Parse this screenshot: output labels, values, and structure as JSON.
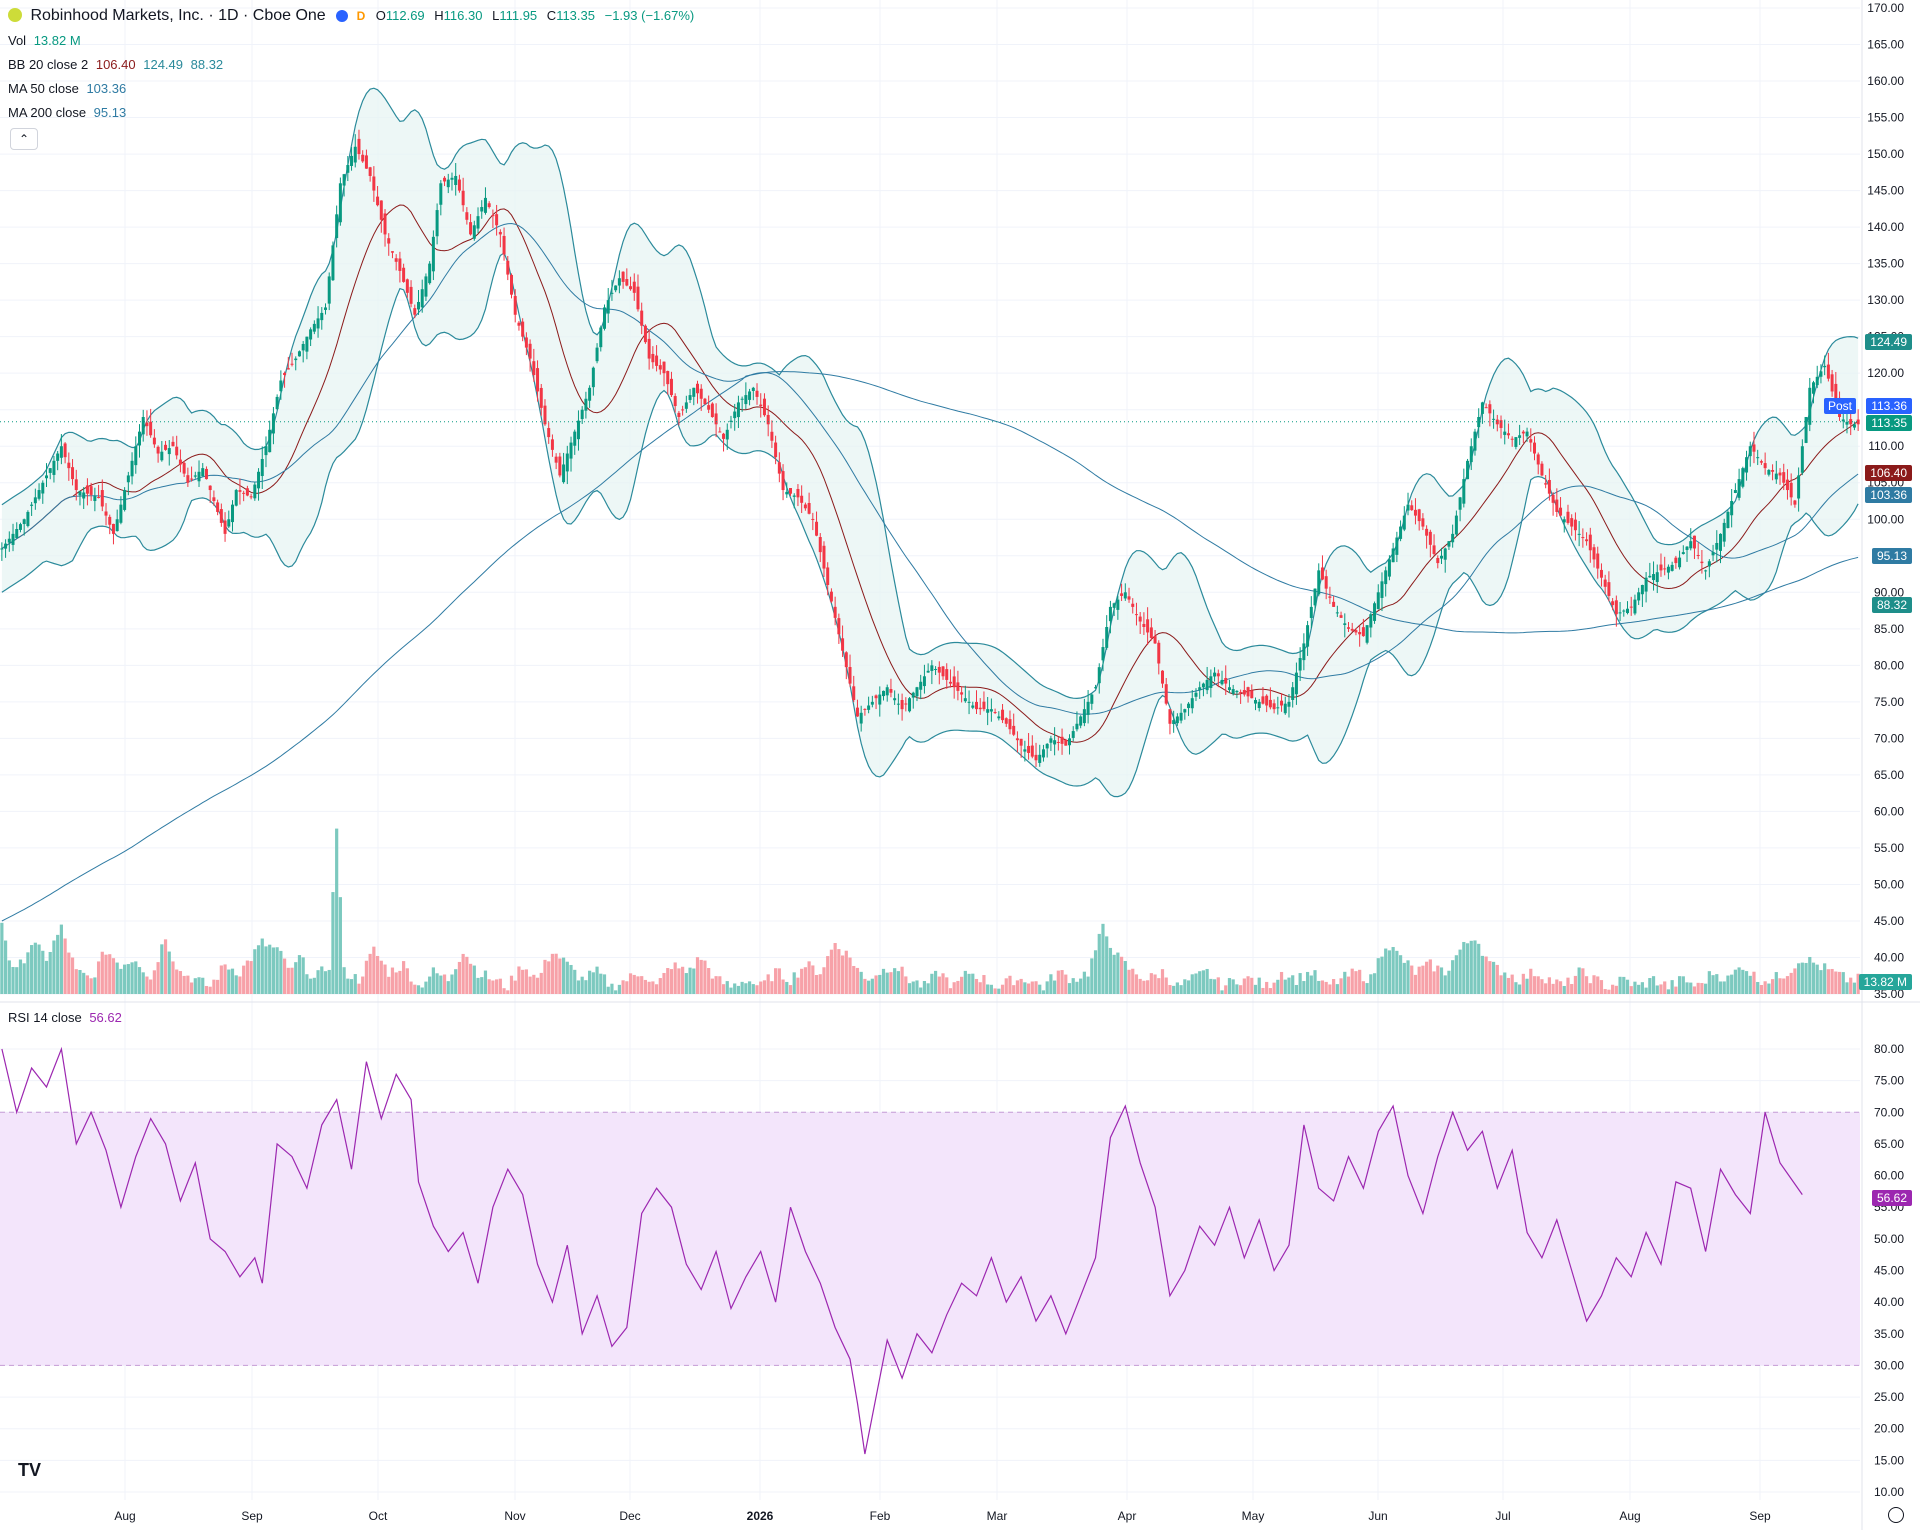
{
  "header": {
    "title": "Robinhood Markets, Inc. · 1D · Cboe One",
    "market_status_icons": [
      "moon-icon",
      "delayed-d-icon"
    ],
    "delayed_label": "D",
    "ohlc": {
      "o_label": "O",
      "o": "112.69",
      "h_label": "H",
      "h": "116.30",
      "l_label": "L",
      "l": "111.95",
      "c_label": "C",
      "c": "113.35",
      "change": "−1.93 (−1.67%)"
    }
  },
  "indicators": {
    "vol": {
      "label": "Vol",
      "value": "13.82 M"
    },
    "bb": {
      "label": "BB 20 close 2",
      "basis": "106.40",
      "upper": "124.49",
      "lower": "88.32"
    },
    "ma50": {
      "label": "MA 50 close",
      "value": "103.36"
    },
    "ma200": {
      "label": "MA 200 close",
      "value": "95.13"
    },
    "rsi": {
      "label": "RSI 14 close",
      "value": "56.62"
    }
  },
  "badges": {
    "post_label": "Post",
    "post_price": "113.36",
    "last_price": "113.35",
    "bb_upper": "124.49",
    "bb_basis": "106.40",
    "ma50": "103.36",
    "ma200": "95.13",
    "bb_lower": "88.32",
    "volume": "13.82 M",
    "rsi": "56.62"
  },
  "colors": {
    "up": "#089981",
    "down": "#f23645",
    "bb_line": "#2b8a9b",
    "bb_fill": "#e6f4f2",
    "bb_basis": "#8b1a1a",
    "ma50": "#2f7ba3",
    "ma200": "#2f7ba3",
    "rsi_line": "#9c27b0",
    "rsi_band": "#f3e5fb",
    "post": "#2962ff"
  },
  "collapse_icon": "chevron-up-icon",
  "logo_icon": "tradingview-logo-icon",
  "settings_icon": "gear-icon",
  "chart_data": {
    "type": "candlestick",
    "price_axis": {
      "ticks": [
        "170.00",
        "165.00",
        "160.00",
        "155.00",
        "150.00",
        "145.00",
        "140.00",
        "135.00",
        "130.00",
        "125.00",
        "120.00",
        "115.00",
        "110.00",
        "105.00",
        "100.00",
        "95.00",
        "90.00",
        "85.00",
        "80.00",
        "75.00",
        "70.00",
        "65.00",
        "60.00",
        "55.00",
        "50.00",
        "45.00",
        "40.00",
        "35.00"
      ],
      "range": [
        35,
        170
      ]
    },
    "rsi_axis": {
      "ticks": [
        "80.00",
        "75.00",
        "70.00",
        "65.00",
        "60.00",
        "55.00",
        "50.00",
        "45.00",
        "40.00",
        "35.00",
        "30.00",
        "25.00",
        "20.00",
        "15.00",
        "10.00"
      ],
      "range": [
        10,
        80
      ],
      "band": [
        30,
        70
      ]
    },
    "time_axis": [
      "Aug",
      "Sep",
      "Oct",
      "Nov",
      "Dec",
      "2026",
      "Feb",
      "Mar",
      "Apr",
      "May",
      "Jun",
      "Jul",
      "Aug",
      "Sep"
    ],
    "close_path": [
      [
        0,
        96
      ],
      [
        6,
        100
      ],
      [
        12,
        106
      ],
      [
        16,
        110
      ],
      [
        20,
        104
      ],
      [
        26,
        103
      ],
      [
        30,
        98
      ],
      [
        34,
        106
      ],
      [
        38,
        114
      ],
      [
        42,
        109
      ],
      [
        46,
        110
      ],
      [
        50,
        105
      ],
      [
        54,
        107
      ],
      [
        58,
        101
      ],
      [
        60,
        98
      ],
      [
        63,
        104
      ],
      [
        67,
        103
      ],
      [
        71,
        110
      ],
      [
        75,
        119
      ],
      [
        79,
        122
      ],
      [
        83,
        126
      ],
      [
        87,
        129
      ],
      [
        91,
        146
      ],
      [
        95,
        151
      ],
      [
        99,
        147
      ],
      [
        103,
        139
      ],
      [
        107,
        134
      ],
      [
        111,
        128
      ],
      [
        115,
        135
      ],
      [
        118,
        146
      ],
      [
        122,
        147
      ],
      [
        126,
        139
      ],
      [
        130,
        144
      ],
      [
        134,
        139
      ],
      [
        138,
        128
      ],
      [
        142,
        122
      ],
      [
        146,
        113
      ],
      [
        150,
        106
      ],
      [
        154,
        112
      ],
      [
        158,
        118
      ],
      [
        162,
        129
      ],
      [
        166,
        133
      ],
      [
        170,
        131
      ],
      [
        174,
        122
      ],
      [
        178,
        120
      ],
      [
        182,
        114
      ],
      [
        186,
        118
      ],
      [
        190,
        115
      ],
      [
        194,
        111
      ],
      [
        198,
        116
      ],
      [
        202,
        118
      ],
      [
        206,
        113
      ],
      [
        210,
        104
      ],
      [
        214,
        103
      ],
      [
        218,
        100
      ],
      [
        222,
        91
      ],
      [
        226,
        82
      ],
      [
        230,
        73
      ],
      [
        234,
        75
      ],
      [
        238,
        77
      ],
      [
        242,
        74
      ],
      [
        246,
        77
      ],
      [
        250,
        80
      ],
      [
        254,
        78
      ],
      [
        258,
        76
      ],
      [
        262,
        74
      ],
      [
        266,
        74
      ],
      [
        270,
        72
      ],
      [
        274,
        69
      ],
      [
        278,
        67
      ],
      [
        282,
        70
      ],
      [
        286,
        69
      ],
      [
        290,
        73
      ],
      [
        294,
        77
      ],
      [
        298,
        88
      ],
      [
        302,
        90
      ],
      [
        306,
        86
      ],
      [
        310,
        83
      ],
      [
        314,
        72
      ],
      [
        318,
        74
      ],
      [
        322,
        77
      ],
      [
        326,
        79
      ],
      [
        330,
        77
      ],
      [
        334,
        76
      ],
      [
        338,
        75
      ],
      [
        342,
        74
      ],
      [
        346,
        75
      ],
      [
        350,
        83
      ],
      [
        354,
        93
      ],
      [
        358,
        88
      ],
      [
        362,
        85
      ],
      [
        366,
        84
      ],
      [
        370,
        90
      ],
      [
        374,
        96
      ],
      [
        378,
        102
      ],
      [
        382,
        99
      ],
      [
        386,
        94
      ],
      [
        390,
        98
      ],
      [
        394,
        108
      ],
      [
        398,
        116
      ],
      [
        402,
        113
      ],
      [
        406,
        111
      ],
      [
        410,
        112
      ],
      [
        414,
        106
      ],
      [
        418,
        101
      ],
      [
        422,
        99
      ],
      [
        426,
        97
      ],
      [
        430,
        92
      ],
      [
        434,
        87
      ],
      [
        438,
        88
      ],
      [
        442,
        92
      ],
      [
        446,
        93
      ],
      [
        450,
        94
      ],
      [
        454,
        97
      ],
      [
        458,
        93
      ],
      [
        462,
        98
      ],
      [
        466,
        104
      ],
      [
        470,
        110
      ],
      [
        474,
        107
      ],
      [
        478,
        106
      ],
      [
        482,
        102
      ],
      [
        486,
        118
      ],
      [
        490,
        121
      ],
      [
        494,
        114
      ],
      [
        497,
        113
      ]
    ],
    "volume_path": [
      [
        0,
        45
      ],
      [
        2,
        40
      ],
      [
        4,
        38
      ],
      [
        8,
        42
      ],
      [
        12,
        40
      ],
      [
        16,
        44
      ],
      [
        20,
        38
      ],
      [
        24,
        37
      ],
      [
        28,
        41
      ],
      [
        32,
        39
      ],
      [
        36,
        40
      ],
      [
        40,
        37
      ],
      [
        44,
        43
      ],
      [
        46,
        40
      ],
      [
        48,
        38
      ],
      [
        52,
        37
      ],
      [
        56,
        36
      ],
      [
        60,
        39
      ],
      [
        64,
        38
      ],
      [
        70,
        42
      ],
      [
        74,
        41
      ],
      [
        78,
        38
      ],
      [
        80,
        40
      ],
      [
        84,
        37
      ],
      [
        88,
        39
      ],
      [
        90,
        58
      ],
      [
        92,
        38
      ],
      [
        96,
        37
      ],
      [
        100,
        41
      ],
      [
        104,
        38
      ],
      [
        108,
        39
      ],
      [
        112,
        36
      ],
      [
        116,
        38
      ],
      [
        120,
        37
      ],
      [
        124,
        41
      ],
      [
        128,
        38
      ],
      [
        132,
        37
      ],
      [
        136,
        36
      ],
      [
        140,
        39
      ],
      [
        144,
        37
      ],
      [
        148,
        41
      ],
      [
        152,
        39
      ],
      [
        156,
        37
      ],
      [
        160,
        38
      ],
      [
        164,
        36
      ],
      [
        168,
        37
      ],
      [
        172,
        38
      ],
      [
        176,
        36
      ],
      [
        180,
        39
      ],
      [
        184,
        38
      ],
      [
        188,
        40
      ],
      [
        192,
        37
      ],
      [
        196,
        36
      ],
      [
        200,
        37
      ],
      [
        204,
        36
      ],
      [
        208,
        38
      ],
      [
        212,
        37
      ],
      [
        216,
        39
      ],
      [
        220,
        38
      ],
      [
        224,
        42
      ],
      [
        228,
        40
      ],
      [
        232,
        37
      ],
      [
        236,
        38
      ],
      [
        240,
        39
      ],
      [
        244,
        37
      ],
      [
        248,
        36
      ],
      [
        252,
        38
      ],
      [
        256,
        36
      ],
      [
        260,
        38
      ],
      [
        264,
        37
      ],
      [
        268,
        36
      ],
      [
        272,
        37
      ],
      [
        276,
        37
      ],
      [
        280,
        36
      ],
      [
        284,
        38
      ],
      [
        288,
        37
      ],
      [
        292,
        38
      ],
      [
        296,
        44
      ],
      [
        300,
        40
      ],
      [
        304,
        38
      ],
      [
        308,
        37
      ],
      [
        312,
        38
      ],
      [
        316,
        36
      ],
      [
        320,
        37
      ],
      [
        324,
        38
      ],
      [
        328,
        36
      ],
      [
        332,
        37
      ],
      [
        336,
        37
      ],
      [
        340,
        36
      ],
      [
        344,
        38
      ],
      [
        348,
        37
      ],
      [
        352,
        38
      ],
      [
        356,
        36
      ],
      [
        360,
        37
      ],
      [
        364,
        38
      ],
      [
        368,
        37
      ],
      [
        372,
        42
      ],
      [
        376,
        40
      ],
      [
        380,
        38
      ],
      [
        384,
        39
      ],
      [
        388,
        38
      ],
      [
        392,
        41
      ],
      [
        396,
        43
      ],
      [
        400,
        39
      ],
      [
        404,
        38
      ],
      [
        408,
        37
      ],
      [
        412,
        38
      ],
      [
        416,
        37
      ],
      [
        420,
        36
      ],
      [
        424,
        38
      ],
      [
        428,
        37
      ],
      [
        432,
        36
      ],
      [
        436,
        37
      ],
      [
        440,
        36
      ],
      [
        444,
        37
      ],
      [
        448,
        36
      ],
      [
        452,
        37
      ],
      [
        456,
        36
      ],
      [
        460,
        38
      ],
      [
        464,
        37
      ],
      [
        468,
        39
      ],
      [
        472,
        37
      ],
      [
        476,
        37
      ],
      [
        480,
        38
      ],
      [
        484,
        40
      ],
      [
        488,
        39
      ],
      [
        492,
        38
      ],
      [
        496,
        37
      ]
    ],
    "rsi_path": [
      [
        0,
        80
      ],
      [
        4,
        70
      ],
      [
        8,
        77
      ],
      [
        12,
        74
      ],
      [
        16,
        80
      ],
      [
        20,
        65
      ],
      [
        24,
        70
      ],
      [
        28,
        64
      ],
      [
        32,
        55
      ],
      [
        36,
        63
      ],
      [
        40,
        69
      ],
      [
        44,
        65
      ],
      [
        48,
        56
      ],
      [
        52,
        62
      ],
      [
        56,
        50
      ],
      [
        60,
        48
      ],
      [
        64,
        44
      ],
      [
        68,
        47
      ],
      [
        70,
        43
      ],
      [
        74,
        65
      ],
      [
        78,
        63
      ],
      [
        82,
        58
      ],
      [
        86,
        68
      ],
      [
        90,
        72
      ],
      [
        94,
        61
      ],
      [
        98,
        78
      ],
      [
        102,
        69
      ],
      [
        106,
        76
      ],
      [
        110,
        72
      ],
      [
        112,
        59
      ],
      [
        116,
        52
      ],
      [
        120,
        48
      ],
      [
        124,
        51
      ],
      [
        128,
        43
      ],
      [
        132,
        55
      ],
      [
        136,
        61
      ],
      [
        140,
        57
      ],
      [
        144,
        46
      ],
      [
        148,
        40
      ],
      [
        152,
        49
      ],
      [
        156,
        35
      ],
      [
        160,
        41
      ],
      [
        164,
        33
      ],
      [
        168,
        36
      ],
      [
        172,
        54
      ],
      [
        176,
        58
      ],
      [
        180,
        55
      ],
      [
        184,
        46
      ],
      [
        188,
        42
      ],
      [
        192,
        48
      ],
      [
        196,
        39
      ],
      [
        200,
        44
      ],
      [
        204,
        48
      ],
      [
        208,
        40
      ],
      [
        212,
        55
      ],
      [
        216,
        48
      ],
      [
        220,
        43
      ],
      [
        224,
        36
      ],
      [
        228,
        31
      ],
      [
        230,
        24
      ],
      [
        232,
        16
      ],
      [
        234,
        22
      ],
      [
        238,
        34
      ],
      [
        242,
        28
      ],
      [
        246,
        35
      ],
      [
        250,
        32
      ],
      [
        254,
        38
      ],
      [
        258,
        43
      ],
      [
        262,
        41
      ],
      [
        266,
        47
      ],
      [
        270,
        40
      ],
      [
        274,
        44
      ],
      [
        278,
        37
      ],
      [
        282,
        41
      ],
      [
        286,
        35
      ],
      [
        290,
        41
      ],
      [
        294,
        47
      ],
      [
        298,
        66
      ],
      [
        302,
        71
      ],
      [
        306,
        62
      ],
      [
        310,
        55
      ],
      [
        314,
        41
      ],
      [
        318,
        45
      ],
      [
        322,
        52
      ],
      [
        326,
        49
      ],
      [
        330,
        55
      ],
      [
        334,
        47
      ],
      [
        338,
        53
      ],
      [
        342,
        45
      ],
      [
        346,
        49
      ],
      [
        350,
        68
      ],
      [
        354,
        58
      ],
      [
        358,
        56
      ],
      [
        362,
        63
      ],
      [
        366,
        58
      ],
      [
        370,
        67
      ],
      [
        374,
        71
      ],
      [
        378,
        60
      ],
      [
        382,
        54
      ],
      [
        386,
        63
      ],
      [
        390,
        70
      ],
      [
        394,
        64
      ],
      [
        398,
        67
      ],
      [
        402,
        58
      ],
      [
        406,
        64
      ],
      [
        410,
        51
      ],
      [
        414,
        47
      ],
      [
        418,
        53
      ],
      [
        422,
        45
      ],
      [
        426,
        37
      ],
      [
        430,
        41
      ],
      [
        434,
        47
      ],
      [
        438,
        44
      ],
      [
        442,
        51
      ],
      [
        446,
        46
      ],
      [
        450,
        59
      ],
      [
        454,
        58
      ],
      [
        458,
        48
      ],
      [
        462,
        61
      ],
      [
        466,
        57
      ],
      [
        470,
        54
      ],
      [
        474,
        70
      ],
      [
        478,
        62
      ],
      [
        484,
        57
      ]
    ]
  }
}
